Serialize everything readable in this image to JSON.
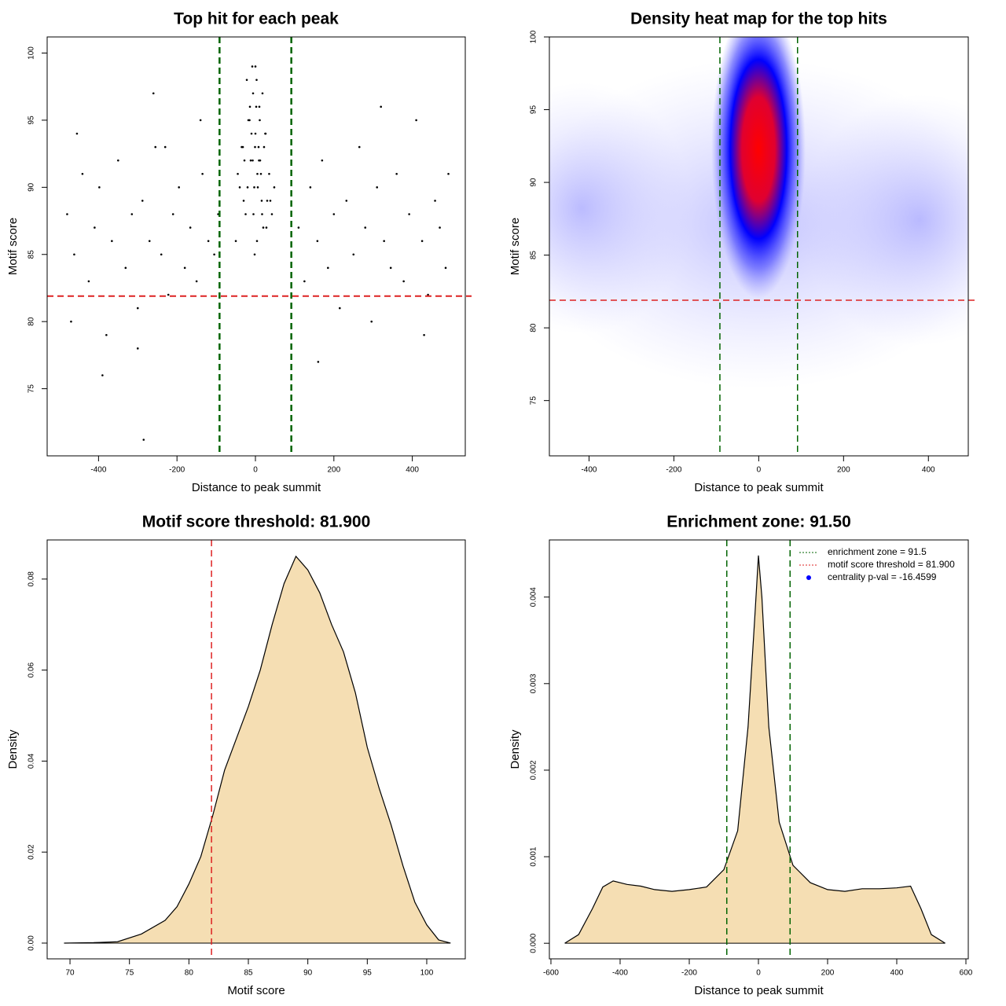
{
  "chart_data": [
    {
      "type": "scatter",
      "title": "Top hit for each peak",
      "xlabel": "Distance to peak summit",
      "ylabel": "Motif score",
      "color": "#000000",
      "x": [
        -480,
        -462,
        -441,
        -425,
        -410,
        -398,
        -380,
        -366,
        -350,
        -331,
        -315,
        -300,
        -288,
        -270,
        -255,
        -240,
        -222,
        -210,
        -195,
        -180,
        -166,
        -150,
        -135,
        -120,
        -105,
        -95,
        -140,
        -470,
        -455,
        -300,
        -260,
        -390,
        110,
        125,
        140,
        158,
        170,
        185,
        200,
        215,
        232,
        250,
        265,
        280,
        296,
        310,
        328,
        345,
        360,
        378,
        392,
        410,
        425,
        440,
        458,
        470,
        485,
        492,
        160,
        320,
        430,
        -230,
        -40,
        -32,
        -25,
        -18,
        -12,
        -6,
        0,
        5,
        10,
        16,
        22,
        28,
        35,
        42,
        -50,
        -8,
        3,
        12,
        -20,
        25,
        -15,
        -3,
        8,
        18,
        -28,
        30,
        -5,
        2,
        14,
        -10,
        20,
        -35,
        38,
        -22,
        6,
        0,
        -2,
        9,
        -14,
        17,
        -45,
        48,
        -1,
        4,
        11,
        -7,
        26,
        -30,
        -285
      ],
      "values": [
        88,
        85,
        91,
        83,
        87,
        90,
        79,
        86,
        92,
        84,
        88,
        81,
        89,
        86,
        93,
        85,
        82,
        88,
        90,
        84,
        87,
        83,
        91,
        86,
        85,
        88,
        95,
        80,
        94,
        78,
        97,
        76,
        87,
        83,
        90,
        86,
        92,
        84,
        88,
        81,
        89,
        85,
        93,
        87,
        80,
        90,
        86,
        84,
        91,
        83,
        88,
        95,
        86,
        82,
        89,
        87,
        84,
        91,
        77,
        96,
        79,
        93,
        90,
        93,
        88,
        95,
        92,
        97,
        94,
        91,
        96,
        89,
        93,
        87,
        91,
        88,
        86,
        99,
        98,
        92,
        90,
        94,
        95,
        90,
        93,
        97,
        92,
        89,
        88,
        96,
        91,
        94,
        87,
        93,
        89,
        98,
        90,
        99,
        85,
        92,
        96,
        88,
        91,
        90,
        93,
        86,
        95,
        92,
        94,
        89,
        71.2
      ],
      "xlim": [
        -531,
        535
      ],
      "ylim": [
        70.0,
        101.2
      ],
      "xticks": [
        -400,
        -200,
        0,
        200,
        400
      ],
      "yticks": [
        75,
        80,
        85,
        90,
        95,
        100
      ],
      "vlines": {
        "values": [
          -91.5,
          91.5
        ],
        "color": "#006400",
        "lwd": 2.5
      },
      "hline": {
        "value": 81.9,
        "color": "#dd2222",
        "lwd": 2
      }
    },
    {
      "type": "heatmap",
      "title": "Density heat map for the top hits",
      "xlabel": "Distance to peak summit",
      "ylabel": "Motif score",
      "xlim": [
        -493.5,
        494
      ],
      "ylim": [
        71.2,
        100
      ],
      "xticks": [
        -400,
        -200,
        0,
        200,
        400
      ],
      "yticks": [
        75,
        80,
        85,
        90,
        95,
        100
      ],
      "vlines": {
        "values": [
          -91.5,
          91.5
        ],
        "color": "#006400",
        "lwd": 1.5
      },
      "hline": {
        "value": 81.9,
        "color": "#dd2222",
        "lwd": 1.5
      }
    },
    {
      "type": "density",
      "title": "Motif score threshold: 81.900",
      "xlabel": "Motif score",
      "ylabel": "Density",
      "color": "#F5DEB3",
      "x": [
        69.5,
        72,
        74,
        76,
        78,
        79,
        80,
        81,
        82,
        83,
        84,
        85,
        86,
        87,
        88,
        89,
        90,
        91,
        92,
        93,
        94,
        95,
        96,
        97,
        98,
        99,
        100,
        101,
        102
      ],
      "values": [
        0,
        0.0001,
        0.0003,
        0.002,
        0.005,
        0.008,
        0.013,
        0.019,
        0.028,
        0.038,
        0.045,
        0.052,
        0.06,
        0.07,
        0.079,
        0.085,
        0.082,
        0.077,
        0.07,
        0.064,
        0.055,
        0.043,
        0.034,
        0.026,
        0.017,
        0.009,
        0.004,
        0.0007,
        0
      ],
      "xlim": [
        68.08,
        103.24
      ],
      "ylim": [
        -0.00346,
        0.0886
      ],
      "xticks": [
        70,
        75,
        80,
        85,
        90,
        95,
        100
      ],
      "yticks": [
        {
          "value": 0,
          "label": "0.00"
        },
        {
          "value": 0.02,
          "label": "0.02"
        },
        {
          "value": 0.04,
          "label": "0.04"
        },
        {
          "value": 0.06,
          "label": "0.06"
        },
        {
          "value": 0.08,
          "label": "0.08"
        }
      ],
      "vlines": {
        "values": [
          81.9
        ],
        "color": "#dd2222",
        "lwd": 1.5
      }
    },
    {
      "type": "density",
      "title": "Enrichment zone: 91.50",
      "xlabel": "Distance to peak summit",
      "ylabel": "Density",
      "color": "#F5DEB3",
      "x": [
        -560,
        -520,
        -480,
        -450,
        -420,
        -380,
        -340,
        -300,
        -250,
        -200,
        -150,
        -100,
        -60,
        -30,
        -10,
        0,
        10,
        30,
        60,
        100,
        150,
        200,
        250,
        300,
        350,
        400,
        440,
        470,
        500,
        540
      ],
      "values": [
        0,
        0.0001,
        0.0004,
        0.00065,
        0.00072,
        0.00068,
        0.00066,
        0.00062,
        0.0006,
        0.00062,
        0.00065,
        0.00085,
        0.0013,
        0.0025,
        0.0038,
        0.00448,
        0.004,
        0.0025,
        0.0014,
        0.0009,
        0.0007,
        0.00062,
        0.0006,
        0.00063,
        0.00063,
        0.00064,
        0.00066,
        0.0004,
        0.0001,
        0
      ],
      "xlim": [
        -604.5,
        606.8
      ],
      "ylim": [
        -0.00018,
        0.00466
      ],
      "xticks": [
        -600,
        -400,
        -200,
        0,
        200,
        400,
        600
      ],
      "yticks": [
        {
          "value": 0,
          "label": "0.000"
        },
        {
          "value": 0.001,
          "label": "0.001"
        },
        {
          "value": 0.002,
          "label": "0.002"
        },
        {
          "value": 0.003,
          "label": "0.003"
        },
        {
          "value": 0.004,
          "label": "0.004"
        }
      ],
      "vlines": {
        "values": [
          -91.5,
          91.5
        ],
        "color": "#006400",
        "lwd": 1.5
      },
      "legend_position": "topright",
      "legend": [
        {
          "label": "enrichment zone = 91.5",
          "color": "#006400",
          "style": "line"
        },
        {
          "label": "motif score threshold = 81.900",
          "color": "#dd2222",
          "style": "line"
        },
        {
          "label": "centrality p-val = -16.4599",
          "color": "#0000ff",
          "style": "point"
        }
      ]
    }
  ]
}
